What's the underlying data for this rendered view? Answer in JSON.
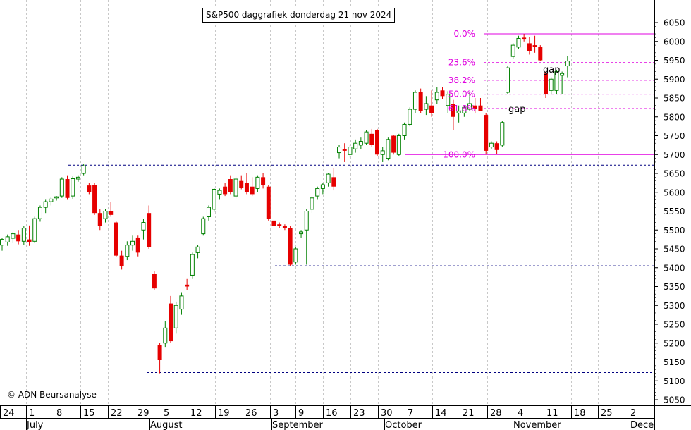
{
  "chart_data": {
    "type": "candlestick",
    "title": "S&P500 daggrafiek donderdag 21 nov 2024",
    "copyright": "© ADN Beursanalyse",
    "ylim": [
      5040,
      6075
    ],
    "y_ticks": [
      5050,
      5100,
      5150,
      5200,
      5250,
      5300,
      5350,
      5400,
      5450,
      5500,
      5550,
      5600,
      5650,
      5700,
      5750,
      5800,
      5850,
      5900,
      5950,
      6000,
      6050
    ],
    "grid": "vertical dashed at day ticks",
    "x_day_ticks": [
      "24",
      "1",
      "8",
      "15",
      "22",
      "29",
      "5",
      "12",
      "19",
      "26",
      "3",
      "9",
      "16",
      "23",
      "30",
      "7",
      "14",
      "21",
      "28",
      "4",
      "11",
      "18",
      "25",
      "2"
    ],
    "x_month_labels": [
      "July",
      "August",
      "September",
      "October",
      "November",
      "Dece"
    ],
    "candles": [
      {
        "o": 5460,
        "h": 5480,
        "l": 5445,
        "c": 5475
      },
      {
        "o": 5468,
        "h": 5488,
        "l": 5458,
        "c": 5482
      },
      {
        "o": 5478,
        "h": 5495,
        "l": 5465,
        "c": 5490
      },
      {
        "o": 5488,
        "h": 5500,
        "l": 5462,
        "c": 5470
      },
      {
        "o": 5470,
        "h": 5510,
        "l": 5460,
        "c": 5505
      },
      {
        "o": 5475,
        "h": 5512,
        "l": 5458,
        "c": 5468
      },
      {
        "o": 5470,
        "h": 5535,
        "l": 5465,
        "c": 5530
      },
      {
        "o": 5530,
        "h": 5565,
        "l": 5522,
        "c": 5560
      },
      {
        "o": 5560,
        "h": 5580,
        "l": 5545,
        "c": 5575
      },
      {
        "o": 5575,
        "h": 5588,
        "l": 5565,
        "c": 5582
      },
      {
        "o": 5585,
        "h": 5590,
        "l": 5578,
        "c": 5588
      },
      {
        "o": 5590,
        "h": 5640,
        "l": 5585,
        "c": 5635
      },
      {
        "o": 5635,
        "h": 5645,
        "l": 5580,
        "c": 5585
      },
      {
        "o": 5590,
        "h": 5642,
        "l": 5582,
        "c": 5636
      },
      {
        "o": 5635,
        "h": 5645,
        "l": 5628,
        "c": 5640
      },
      {
        "o": 5650,
        "h": 5675,
        "l": 5645,
        "c": 5670
      },
      {
        "o": 5618,
        "h": 5625,
        "l": 5595,
        "c": 5600
      },
      {
        "o": 5620,
        "h": 5625,
        "l": 5540,
        "c": 5545
      },
      {
        "o": 5545,
        "h": 5555,
        "l": 5500,
        "c": 5510
      },
      {
        "o": 5530,
        "h": 5555,
        "l": 5520,
        "c": 5550
      },
      {
        "o": 5550,
        "h": 5575,
        "l": 5535,
        "c": 5540
      },
      {
        "o": 5520,
        "h": 5522,
        "l": 5430,
        "c": 5432
      },
      {
        "o": 5432,
        "h": 5445,
        "l": 5395,
        "c": 5405
      },
      {
        "o": 5430,
        "h": 5470,
        "l": 5420,
        "c": 5460
      },
      {
        "o": 5460,
        "h": 5485,
        "l": 5445,
        "c": 5470
      },
      {
        "o": 5480,
        "h": 5485,
        "l": 5430,
        "c": 5440
      },
      {
        "o": 5500,
        "h": 5530,
        "l": 5475,
        "c": 5520
      },
      {
        "o": 5545,
        "h": 5565,
        "l": 5450,
        "c": 5455
      },
      {
        "o": 5383,
        "h": 5390,
        "l": 5340,
        "c": 5345
      },
      {
        "o": 5195,
        "h": 5200,
        "l": 5120,
        "c": 5155
      },
      {
        "o": 5200,
        "h": 5258,
        "l": 5190,
        "c": 5240
      },
      {
        "o": 5305,
        "h": 5325,
        "l": 5200,
        "c": 5205
      },
      {
        "o": 5240,
        "h": 5310,
        "l": 5225,
        "c": 5300
      },
      {
        "o": 5290,
        "h": 5335,
        "l": 5275,
        "c": 5325
      },
      {
        "o": 5355,
        "h": 5370,
        "l": 5340,
        "c": 5350
      },
      {
        "o": 5380,
        "h": 5440,
        "l": 5370,
        "c": 5435
      },
      {
        "o": 5440,
        "h": 5460,
        "l": 5425,
        "c": 5455
      },
      {
        "o": 5490,
        "h": 5535,
        "l": 5485,
        "c": 5530
      },
      {
        "o": 5535,
        "h": 5565,
        "l": 5525,
        "c": 5560
      },
      {
        "o": 5555,
        "h": 5612,
        "l": 5548,
        "c": 5608
      },
      {
        "o": 5595,
        "h": 5610,
        "l": 5580,
        "c": 5605
      },
      {
        "o": 5615,
        "h": 5625,
        "l": 5590,
        "c": 5595
      },
      {
        "o": 5635,
        "h": 5645,
        "l": 5595,
        "c": 5600
      },
      {
        "o": 5590,
        "h": 5642,
        "l": 5582,
        "c": 5635
      },
      {
        "o": 5630,
        "h": 5645,
        "l": 5608,
        "c": 5612
      },
      {
        "o": 5625,
        "h": 5650,
        "l": 5595,
        "c": 5600
      },
      {
        "o": 5615,
        "h": 5640,
        "l": 5590,
        "c": 5595
      },
      {
        "o": 5610,
        "h": 5645,
        "l": 5600,
        "c": 5640
      },
      {
        "o": 5640,
        "h": 5650,
        "l": 5610,
        "c": 5620
      },
      {
        "o": 5615,
        "h": 5620,
        "l": 5525,
        "c": 5530
      },
      {
        "o": 5525,
        "h": 5530,
        "l": 5505,
        "c": 5510
      },
      {
        "o": 5515,
        "h": 5520,
        "l": 5505,
        "c": 5510
      },
      {
        "o": 5510,
        "h": 5515,
        "l": 5500,
        "c": 5505
      },
      {
        "o": 5505,
        "h": 5510,
        "l": 5405,
        "c": 5408
      },
      {
        "o": 5415,
        "h": 5455,
        "l": 5408,
        "c": 5450
      },
      {
        "o": 5490,
        "h": 5500,
        "l": 5480,
        "c": 5495
      },
      {
        "o": 5500,
        "h": 5555,
        "l": 5408,
        "c": 5550
      },
      {
        "o": 5555,
        "h": 5590,
        "l": 5545,
        "c": 5585
      },
      {
        "o": 5590,
        "h": 5615,
        "l": 5580,
        "c": 5610
      },
      {
        "o": 5610,
        "h": 5625,
        "l": 5595,
        "c": 5620
      },
      {
        "o": 5625,
        "h": 5650,
        "l": 5615,
        "c": 5648
      },
      {
        "o": 5640,
        "h": 5665,
        "l": 5605,
        "c": 5615
      },
      {
        "o": 5705,
        "h": 5725,
        "l": 5690,
        "c": 5720
      },
      {
        "o": 5715,
        "h": 5730,
        "l": 5680,
        "c": 5710
      },
      {
        "o": 5700,
        "h": 5725,
        "l": 5692,
        "c": 5720
      },
      {
        "o": 5715,
        "h": 5740,
        "l": 5705,
        "c": 5730
      },
      {
        "o": 5725,
        "h": 5745,
        "l": 5715,
        "c": 5735
      },
      {
        "o": 5730,
        "h": 5765,
        "l": 5725,
        "c": 5760
      },
      {
        "o": 5755,
        "h": 5768,
        "l": 5720,
        "c": 5725
      },
      {
        "o": 5765,
        "h": 5768,
        "l": 5695,
        "c": 5700
      },
      {
        "o": 5700,
        "h": 5720,
        "l": 5680,
        "c": 5710
      },
      {
        "o": 5690,
        "h": 5745,
        "l": 5685,
        "c": 5740
      },
      {
        "o": 5750,
        "h": 5752,
        "l": 5700,
        "c": 5705
      },
      {
        "o": 5700,
        "h": 5755,
        "l": 5695,
        "c": 5750
      },
      {
        "o": 5750,
        "h": 5785,
        "l": 5740,
        "c": 5780
      },
      {
        "o": 5780,
        "h": 5825,
        "l": 5775,
        "c": 5820
      },
      {
        "o": 5820,
        "h": 5870,
        "l": 5810,
        "c": 5865
      },
      {
        "o": 5865,
        "h": 5875,
        "l": 5810,
        "c": 5815
      },
      {
        "o": 5820,
        "h": 5855,
        "l": 5805,
        "c": 5835
      },
      {
        "o": 5830,
        "h": 5870,
        "l": 5800,
        "c": 5810
      },
      {
        "o": 5845,
        "h": 5878,
        "l": 5835,
        "c": 5865
      },
      {
        "o": 5870,
        "h": 5878,
        "l": 5848,
        "c": 5855
      },
      {
        "o": 5830,
        "h": 5868,
        "l": 5810,
        "c": 5860
      },
      {
        "o": 5835,
        "h": 5845,
        "l": 5765,
        "c": 5800
      },
      {
        "o": 5810,
        "h": 5830,
        "l": 5785,
        "c": 5815
      },
      {
        "o": 5810,
        "h": 5830,
        "l": 5800,
        "c": 5825
      },
      {
        "o": 5820,
        "h": 5865,
        "l": 5815,
        "c": 5835
      },
      {
        "o": 5830,
        "h": 5850,
        "l": 5810,
        "c": 5820
      },
      {
        "o": 5830,
        "h": 5850,
        "l": 5818,
        "c": 5815
      },
      {
        "o": 5805,
        "h": 5810,
        "l": 5700,
        "c": 5710
      },
      {
        "o": 5720,
        "h": 5735,
        "l": 5715,
        "c": 5730
      },
      {
        "o": 5730,
        "h": 5735,
        "l": 5702,
        "c": 5712
      },
      {
        "o": 5725,
        "h": 5790,
        "l": 5720,
        "c": 5785
      },
      {
        "o": 5865,
        "h": 5935,
        "l": 5860,
        "c": 5930
      },
      {
        "o": 5960,
        "h": 5995,
        "l": 5955,
        "c": 5990
      },
      {
        "o": 5985,
        "h": 6015,
        "l": 5980,
        "c": 6008
      },
      {
        "o": 6010,
        "h": 6020,
        "l": 6000,
        "c": 6005
      },
      {
        "o": 5995,
        "h": 6012,
        "l": 5965,
        "c": 5975
      },
      {
        "o": 5990,
        "h": 6015,
        "l": 5970,
        "c": 5985
      },
      {
        "o": 5985,
        "h": 5990,
        "l": 5948,
        "c": 5950
      },
      {
        "o": 5915,
        "h": 5920,
        "l": 5850,
        "c": 5860
      },
      {
        "o": 5870,
        "h": 5905,
        "l": 5860,
        "c": 5900
      },
      {
        "o": 5870,
        "h": 5925,
        "l": 5860,
        "c": 5920
      },
      {
        "o": 5910,
        "h": 5920,
        "l": 5860,
        "c": 5915
      },
      {
        "o": 5935,
        "h": 5962,
        "l": 5905,
        "c": 5948
      }
    ],
    "fib_levels": [
      {
        "label": "0.0%",
        "value": 6020
      },
      {
        "label": "23.6%",
        "value": 5944
      },
      {
        "label": "38.2%",
        "value": 5897
      },
      {
        "label": "50.0%",
        "value": 5860
      },
      {
        "label": "61.8%",
        "value": 5822
      },
      {
        "label": "100.0%",
        "value": 5700
      }
    ],
    "support_lines": [
      5672,
      5405,
      5122
    ],
    "annotations": [
      {
        "text": "gap",
        "value": 5925
      },
      {
        "text": "gap",
        "value": 5820
      }
    ],
    "colors": {
      "up": "#008000",
      "down": "#e60000",
      "fib": "#e000e0",
      "support": "#000080",
      "grid": "#c8c8c8"
    }
  }
}
